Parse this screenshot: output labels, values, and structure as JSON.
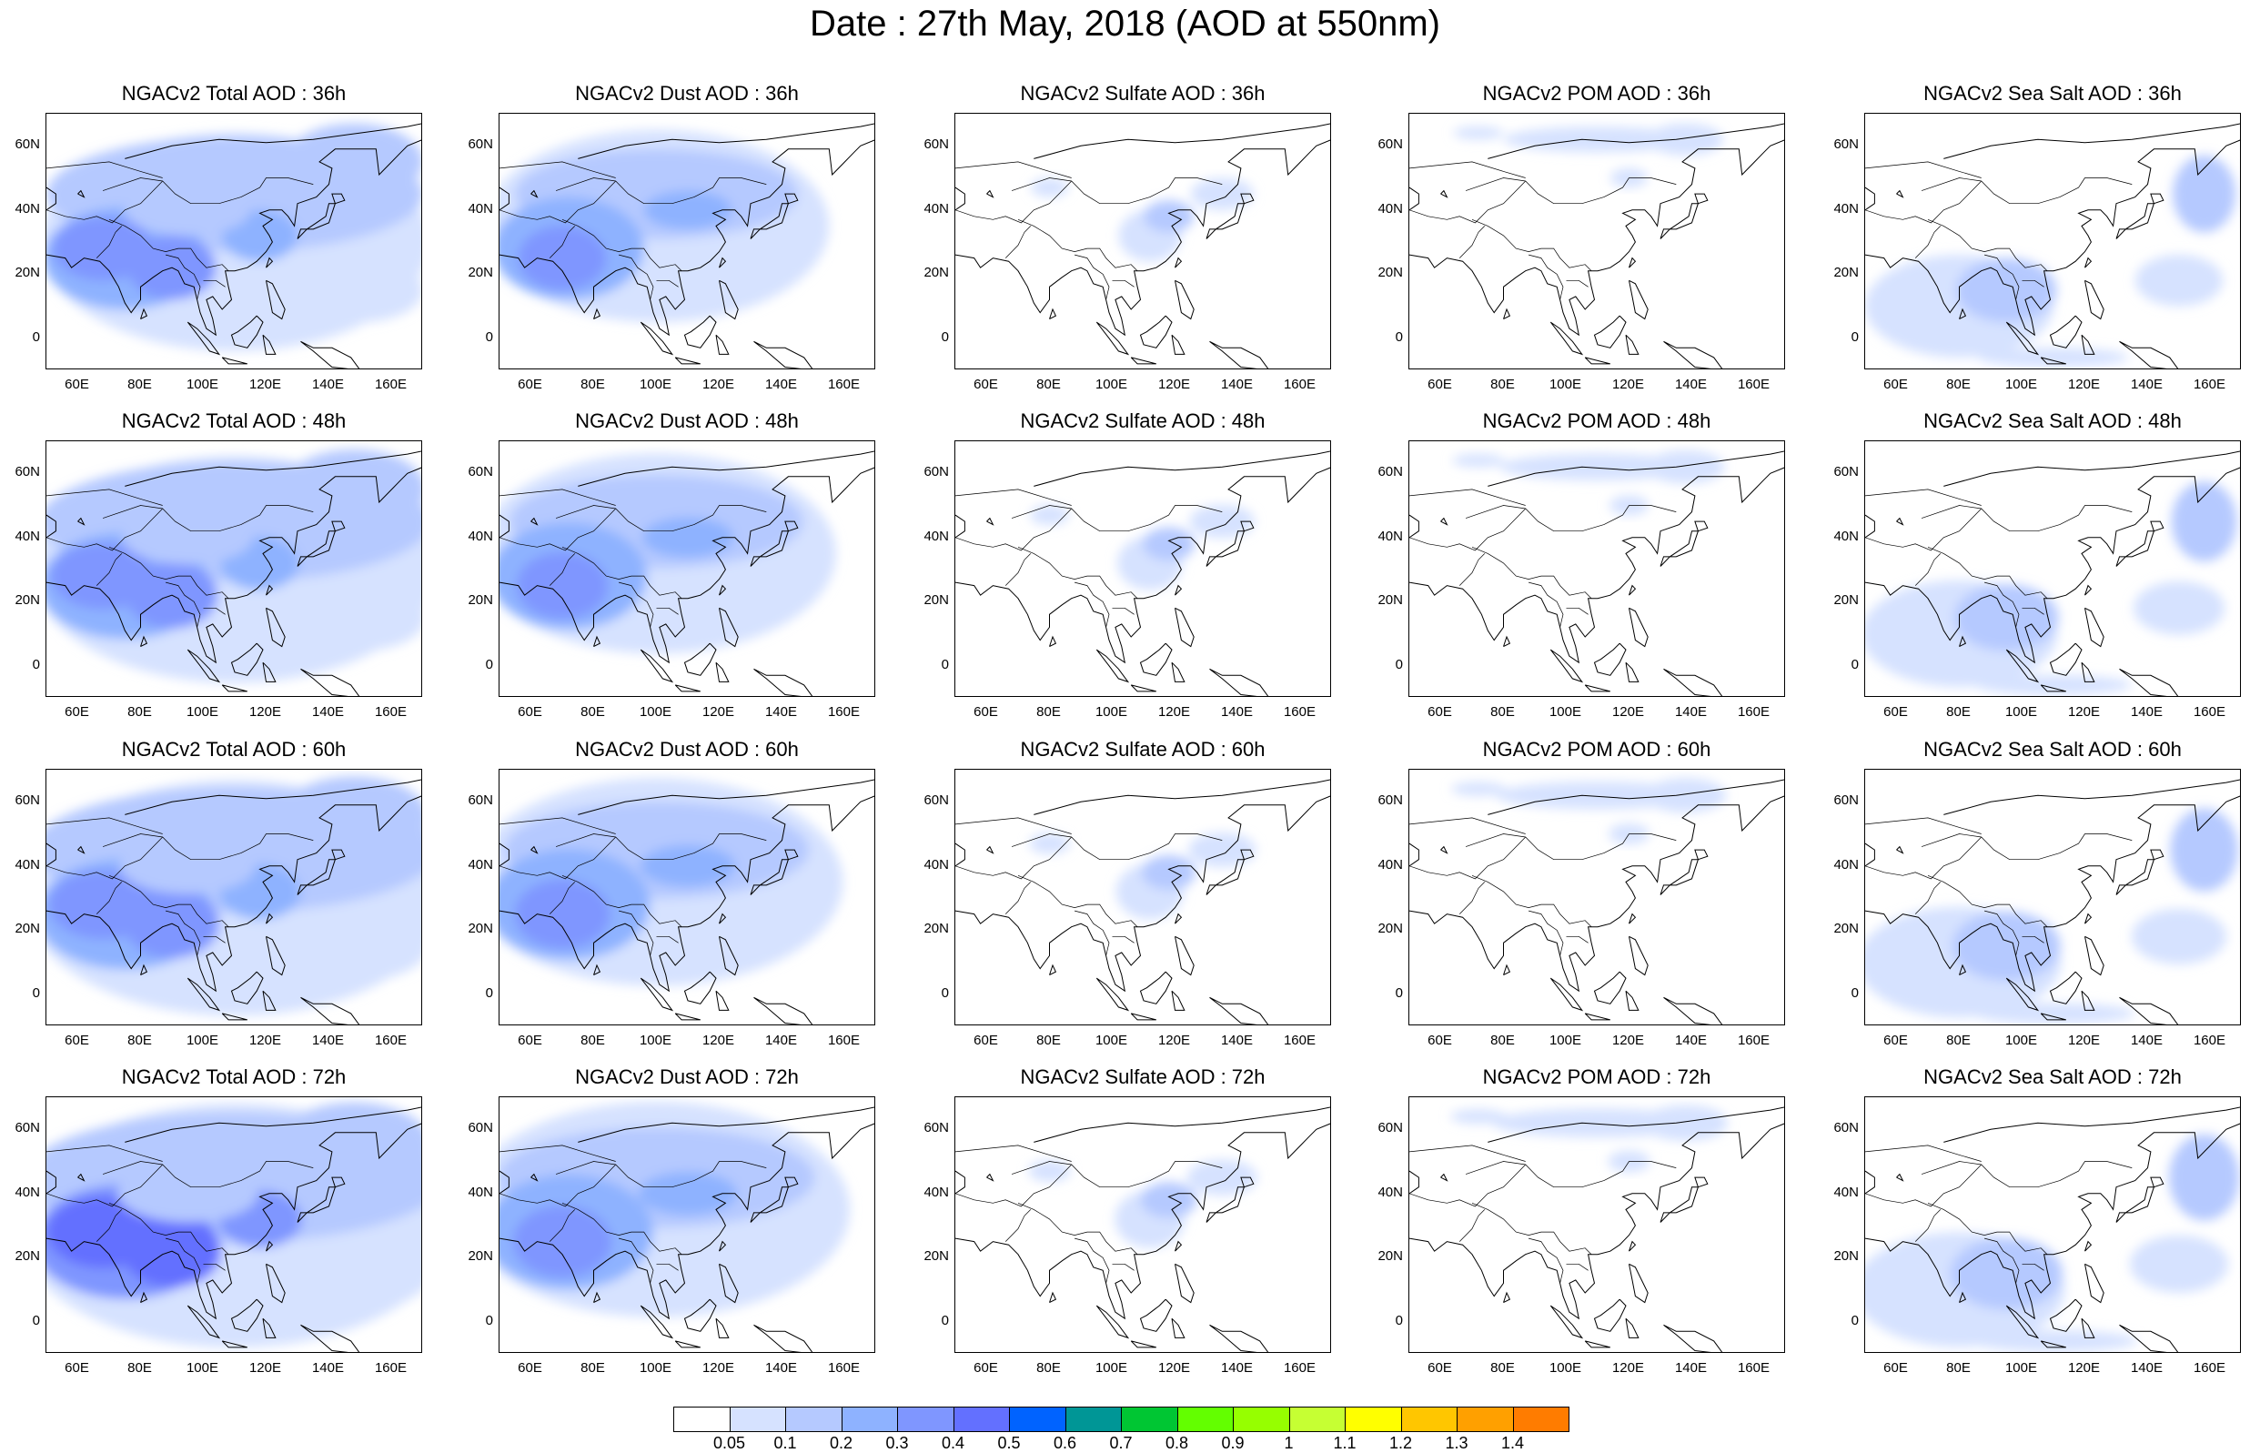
{
  "title": "Date : 27th May, 2018 (AOD at 550nm)",
  "map": {
    "lat_ticks": [
      "60N",
      "40N",
      "20N",
      "0"
    ],
    "lat_values": [
      60,
      40,
      20,
      0
    ],
    "lon_ticks": [
      "60E",
      "80E",
      "100E",
      "120E",
      "140E",
      "160E"
    ],
    "lon_values": [
      60,
      80,
      100,
      120,
      140,
      160
    ],
    "lon_range": [
      50,
      170
    ],
    "lat_range": [
      -10,
      70
    ]
  },
  "columns": [
    "Total",
    "Dust",
    "Sulfate",
    "POM",
    "Sea Salt"
  ],
  "panels": [
    [
      "NGACv2 Total AOD : 36h",
      "NGACv2 Dust AOD : 36h",
      "NGACv2 Sulfate AOD : 36h",
      "NGACv2 POM AOD : 36h",
      "NGACv2 Sea Salt AOD : 36h"
    ],
    [
      "NGACv2 Total AOD : 48h",
      "NGACv2 Dust AOD : 48h",
      "NGACv2 Sulfate AOD : 48h",
      "NGACv2 POM AOD : 48h",
      "NGACv2 Sea Salt AOD : 48h"
    ],
    [
      "NGACv2 Total AOD : 60h",
      "NGACv2 Dust AOD : 60h",
      "NGACv2 Sulfate AOD : 60h",
      "NGACv2 POM AOD : 60h",
      "NGACv2 Sea Salt AOD : 60h"
    ],
    [
      "NGACv2 Total AOD : 72h",
      "NGACv2 Dust AOD : 72h",
      "NGACv2 Sulfate AOD : 72h",
      "NGACv2 POM AOD : 72h",
      "NGACv2 Sea Salt  AOD : 72h"
    ]
  ],
  "colorbar": {
    "labels": [
      "0.05",
      "0.1",
      "0.2",
      "0.3",
      "0.4",
      "0.5",
      "0.6",
      "0.7",
      "0.8",
      "0.9",
      "1",
      "1.1",
      "1.2",
      "1.3",
      "1.4"
    ],
    "colors": [
      "#ffffff",
      "#d6e2ff",
      "#b5c9ff",
      "#8eb2ff",
      "#7f96ff",
      "#6370ff",
      "#0063ff",
      "#009696",
      "#00c633",
      "#63ff00",
      "#96ff00",
      "#c6ff33",
      "#ffff00",
      "#ffc600",
      "#ffa000",
      "#ff7c00",
      "#ff1900"
    ]
  }
}
